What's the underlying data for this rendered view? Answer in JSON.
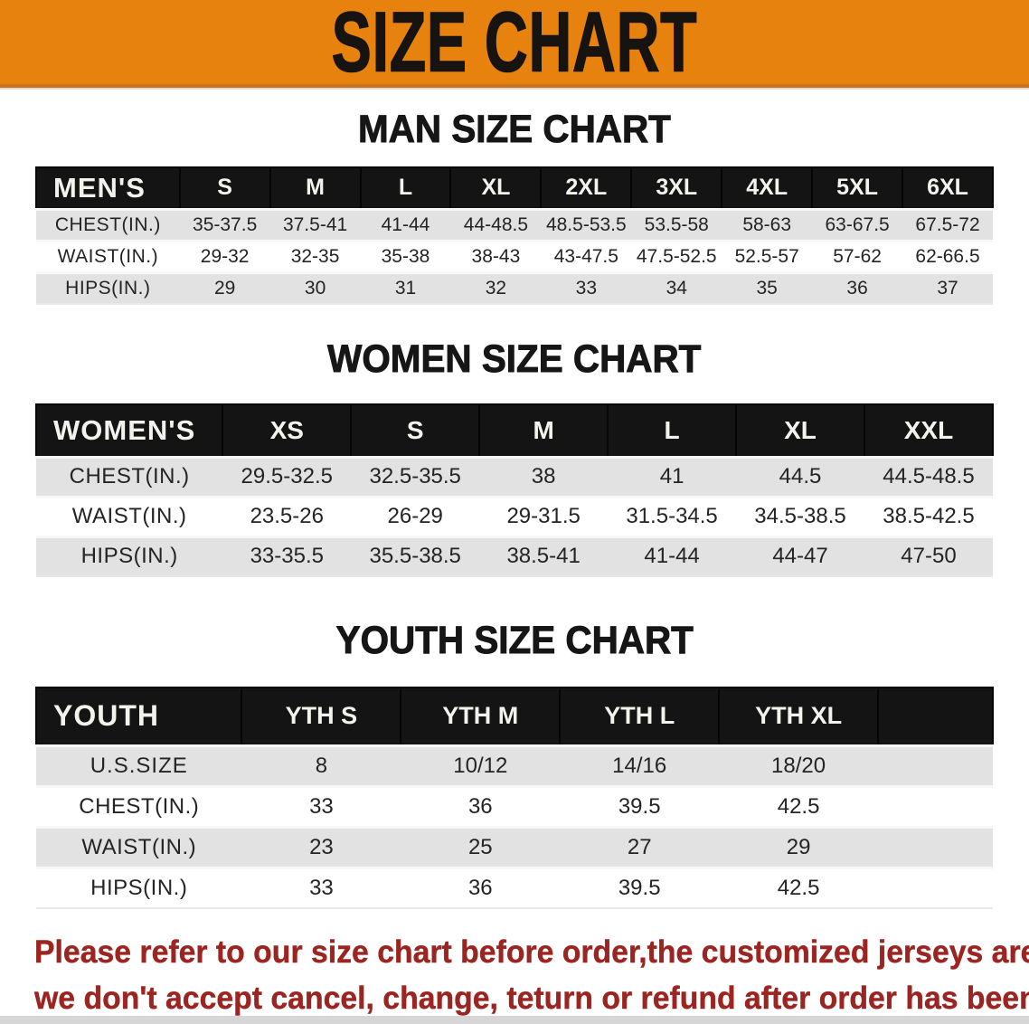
{
  "banner": {
    "title": "SIZE CHART",
    "bg_color": "#E8820E",
    "text_color": "#161310"
  },
  "sections": [
    {
      "heading": "MAN SIZE CHART",
      "table": {
        "label": "MEN'S",
        "columns": [
          "S",
          "M",
          "L",
          "XL",
          "2XL",
          "3XL",
          "4XL",
          "5XL",
          "6XL"
        ],
        "rows": [
          {
            "label": "CHEST(IN.)",
            "values": [
              "35-37.5",
              "37.5-41",
              "41-44",
              "44-48.5",
              "48.5-53.5",
              "53.5-58",
              "58-63",
              "63-67.5",
              "67.5-72"
            ]
          },
          {
            "label": "WAIST(IN.)",
            "values": [
              "29-32",
              "32-35",
              "35-38",
              "38-43",
              "43-47.5",
              "47.5-52.5",
              "52.5-57",
              "57-62",
              "62-66.5"
            ]
          },
          {
            "label": "HIPS(IN.)",
            "values": [
              "29",
              "30",
              "31",
              "32",
              "33",
              "34",
              "35",
              "36",
              "37"
            ]
          }
        ]
      }
    },
    {
      "heading": "WOMEN SIZE CHART",
      "table": {
        "label": "WOMEN'S",
        "columns": [
          "XS",
          "S",
          "M",
          "L",
          "XL",
          "XXL"
        ],
        "rows": [
          {
            "label": "CHEST(IN.)",
            "values": [
              "29.5-32.5",
              "32.5-35.5",
              "38",
              "41",
              "44.5",
              "44.5-48.5"
            ]
          },
          {
            "label": "WAIST(IN.)",
            "values": [
              "23.5-26",
              "26-29",
              "29-31.5",
              "31.5-34.5",
              "34.5-38.5",
              "38.5-42.5"
            ]
          },
          {
            "label": "HIPS(IN.)",
            "values": [
              "33-35.5",
              "35.5-38.5",
              "38.5-41",
              "41-44",
              "44-47",
              "47-50"
            ]
          }
        ]
      }
    },
    {
      "heading": "YOUTH SIZE CHART",
      "table": {
        "label": "YOUTH",
        "columns": [
          "YTH S",
          "YTH M",
          "YTH L",
          "YTH XL"
        ],
        "rows": [
          {
            "label": "U.S.SIZE",
            "values": [
              "8",
              "10/12",
              "14/16",
              "18/20"
            ]
          },
          {
            "label": "CHEST(IN.)",
            "values": [
              "33",
              "36",
              "39.5",
              "42.5"
            ]
          },
          {
            "label": "WAIST(IN.)",
            "values": [
              "23",
              "25",
              "27",
              "29"
            ]
          },
          {
            "label": "HIPS(IN.)",
            "values": [
              "33",
              "36",
              "39.5",
              "42.5"
            ]
          }
        ]
      }
    }
  ],
  "disclaimer": {
    "color": "#9B2521",
    "lines": [
      "Please refer to our size chart before order,the customized jerseys are special products,",
      "we don't accept cancel, change, teturn or refund after order has been placed!"
    ]
  }
}
